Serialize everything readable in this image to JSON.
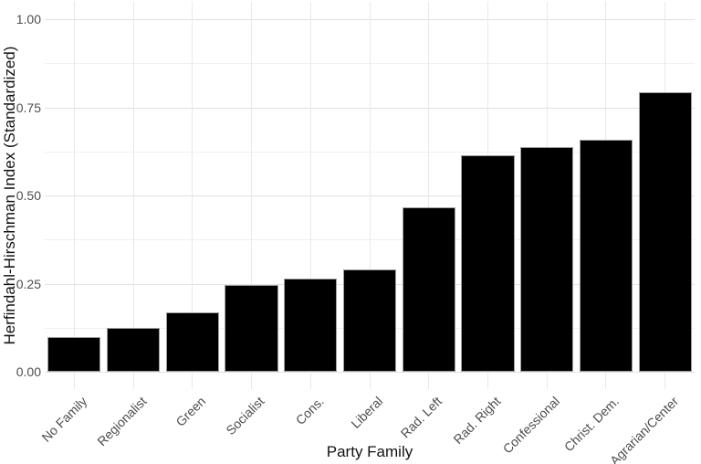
{
  "figure": {
    "background": "#ffffff"
  },
  "chart_data": {
    "type": "bar",
    "title": "",
    "xlabel": "Party Family",
    "ylabel": "Herfindahl-Hirschman Index (Standardized)",
    "categories": [
      "No Family",
      "Regionalist",
      "Green",
      "Socialist",
      "Cons.",
      "Liberal",
      "Rad. Left",
      "Rad. Right",
      "Confessional",
      "Christ. Dem.",
      "Agrarian/Center"
    ],
    "values": [
      0.098,
      0.124,
      0.168,
      0.247,
      0.264,
      0.29,
      0.466,
      0.614,
      0.637,
      0.658,
      0.793
    ],
    "ylim": [
      0,
      1
    ],
    "yticks": [
      0,
      0.25,
      0.5,
      0.75,
      1
    ],
    "ytick_labels": [
      "0.00",
      "0.25",
      "0.50",
      "0.75",
      "1.00"
    ],
    "yminor": [
      0.125,
      0.375,
      0.625,
      0.875
    ],
    "grid": "on",
    "legend": "none",
    "x_labels_rotation_deg": 45,
    "bar_color": "#000000",
    "bar_border_color": "#9e9e9e",
    "grid_major_color": "#e2e2e2",
    "grid_minor_color": "#f0f0f0",
    "grid_vertical_color": "#e9e9e9",
    "axis_text_color": "#4d4d4d",
    "axis_title_color": "#111111"
  }
}
